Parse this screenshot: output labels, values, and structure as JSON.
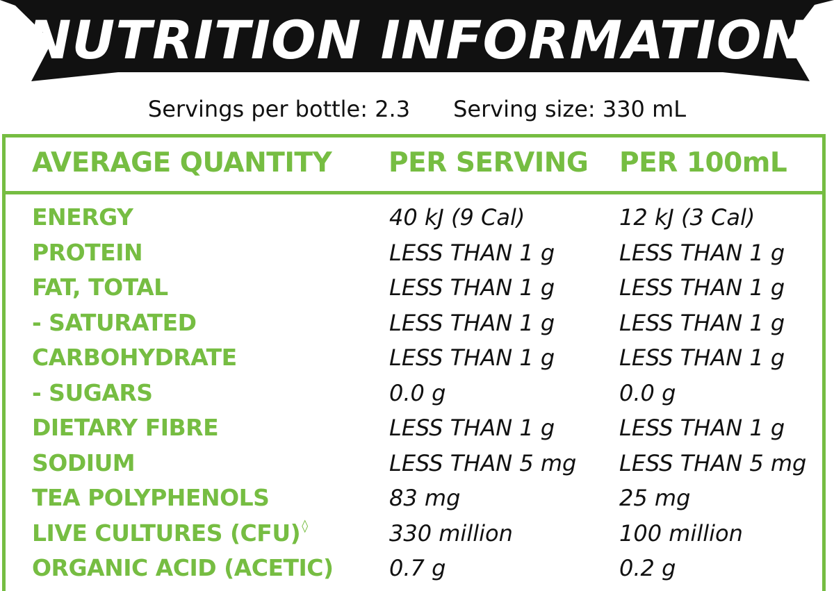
{
  "banner": {
    "title": "NUTRITION INFORMATION"
  },
  "servings": {
    "per_bottle": "Servings per bottle: 2.3",
    "size": "Serving size: 330 mL"
  },
  "table": {
    "headers": [
      "AVERAGE QUANTITY",
      "PER SERVING",
      "PER 100mL"
    ],
    "rows": [
      {
        "name": "ENERGY",
        "per_serving": "40 kJ (9 Cal)",
        "per_100ml": "12 kJ (3 Cal)"
      },
      {
        "name": "PROTEIN",
        "per_serving": "LESS THAN 1 g",
        "per_100ml": "LESS THAN 1 g"
      },
      {
        "name": "FAT, TOTAL",
        "per_serving": "LESS THAN 1 g",
        "per_100ml": "LESS THAN 1 g"
      },
      {
        "name": "- SATURATED",
        "per_serving": "LESS THAN 1 g",
        "per_100ml": "LESS THAN 1 g"
      },
      {
        "name": "CARBOHYDRATE",
        "per_serving": "LESS THAN 1 g",
        "per_100ml": "LESS THAN 1 g"
      },
      {
        "name": "- SUGARS",
        "per_serving": "0.0 g",
        "per_100ml": "0.0 g"
      },
      {
        "name": "DIETARY FIBRE",
        "per_serving": "LESS THAN 1 g",
        "per_100ml": "LESS THAN 1 g"
      },
      {
        "name": "SODIUM",
        "per_serving": "LESS THAN 5 mg",
        "per_100ml": "LESS THAN 5 mg"
      },
      {
        "name": "TEA POLYPHENOLS",
        "per_serving": "83 mg",
        "per_100ml": "25 mg"
      },
      {
        "name": "LIVE CULTURES (CFU)",
        "name_mark": "◊",
        "per_serving": "330 million",
        "per_100ml": "100 million"
      },
      {
        "name": "ORGANIC ACID (ACETIC)",
        "per_serving": "0.7 g",
        "per_100ml": "0.2 g"
      }
    ]
  },
  "colors": {
    "accent_green": "#76bd42",
    "banner_black": "#111111",
    "text_black": "#111111",
    "background": "#ffffff"
  }
}
